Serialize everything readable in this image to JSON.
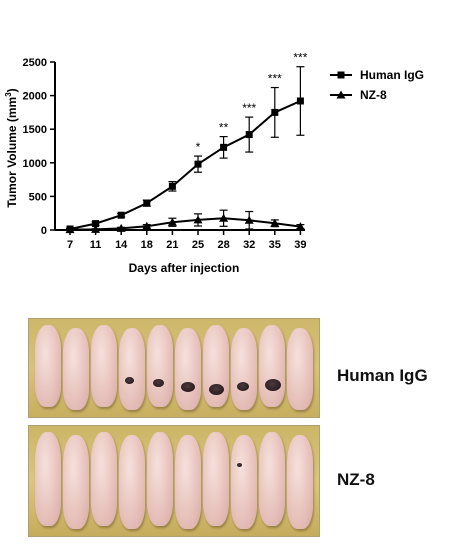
{
  "chart_data": {
    "type": "line",
    "xlabel": "Days after injection",
    "ylabel": "Tumor Volume (mm3)",
    "ylabel_main": "Tumor Volume (mm",
    "ylabel_sup": "3",
    "ylabel_close": ")",
    "categories": [
      "7",
      "11",
      "14",
      "18",
      "21",
      "25",
      "28",
      "32",
      "35",
      "39"
    ],
    "ylim": [
      0,
      2500
    ],
    "yticks": [
      "0",
      "500",
      "1000",
      "1500",
      "2000",
      "2500"
    ],
    "grid": false,
    "legend_position": "top-right",
    "series": [
      {
        "name": "Human IgG",
        "marker": "square",
        "values": [
          15,
          95,
          220,
          400,
          650,
          980,
          1230,
          1420,
          1750,
          1920
        ],
        "errors": [
          10,
          25,
          25,
          45,
          70,
          120,
          160,
          260,
          370,
          510
        ]
      },
      {
        "name": "NZ-8",
        "marker": "triangle",
        "values": [
          5,
          10,
          25,
          55,
          115,
          150,
          175,
          145,
          100,
          50
        ],
        "errors": [
          5,
          8,
          15,
          25,
          60,
          90,
          120,
          130,
          50,
          30
        ]
      }
    ],
    "significance": [
      {
        "x": "25",
        "label": "*"
      },
      {
        "x": "28",
        "label": "**"
      },
      {
        "x": "32",
        "label": "***"
      },
      {
        "x": "35",
        "label": "***"
      },
      {
        "x": "39",
        "label": "***"
      }
    ]
  },
  "photo_panel": {
    "top_label": "Human IgG",
    "bottom_label": "NZ-8",
    "top_mice": 10,
    "bottom_mice": 10
  }
}
